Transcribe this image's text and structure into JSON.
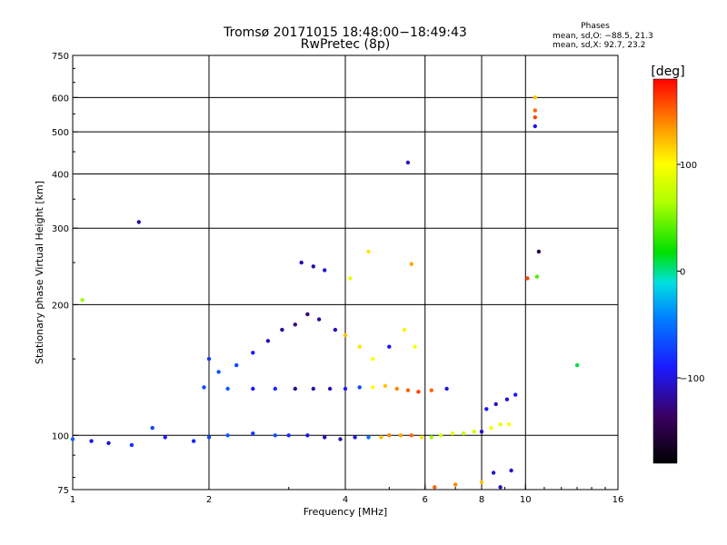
{
  "chart_data": {
    "type": "scatter",
    "title": "Tromsø 20171015 18:48:00−18:49:43",
    "subtitle": "RwPretec (8p)",
    "xlabel": "Frequency [MHz]",
    "ylabel": "Stationary phase Virtual Height [km]",
    "x_scale": "log",
    "y_scale": "log",
    "xlim": [
      1,
      16
    ],
    "ylim": [
      75,
      750
    ],
    "x_ticks": [
      {
        "value": 1,
        "label": "1"
      },
      {
        "value": 2,
        "label": "2"
      },
      {
        "value": 4,
        "label": "4"
      },
      {
        "value": 6,
        "label": "6"
      },
      {
        "value": 8,
        "label": "8"
      },
      {
        "value": 10,
        "label": "10"
      },
      {
        "value": 16,
        "label": "16"
      }
    ],
    "y_ticks": [
      {
        "value": 75,
        "label": "75"
      },
      {
        "value": 100,
        "label": "100"
      },
      {
        "value": 200,
        "label": "200"
      },
      {
        "value": 300,
        "label": "300"
      },
      {
        "value": 400,
        "label": "400"
      },
      {
        "value": 500,
        "label": "500"
      },
      {
        "value": 600,
        "label": "600"
      },
      {
        "value": 750,
        "label": "750"
      }
    ],
    "grid": true,
    "grid_x": [
      2,
      4,
      6,
      8,
      10
    ],
    "grid_y": [
      100,
      200,
      300,
      400,
      500,
      600
    ],
    "phase_box": {
      "title": "Phases",
      "line1": "mean, sd,O: −88.5, 21.3",
      "line2": "mean, sd,X:  92.7, 23.2"
    },
    "colorbar": {
      "label": "[deg]",
      "range": [
        -180,
        180
      ],
      "ticks": [
        {
          "value": 100,
          "label": "100"
        },
        {
          "value": 0,
          "label": "0"
        },
        {
          "value": -100,
          "label": "−100"
        }
      ]
    },
    "series": [
      {
        "segments": [
          [
            1.0,
            98,
            -60
          ],
          [
            1.1,
            97,
            -95
          ],
          [
            1.2,
            96,
            -100
          ],
          [
            1.35,
            95,
            -80
          ],
          [
            1.5,
            104,
            -70
          ],
          [
            1.6,
            99,
            -90
          ],
          [
            1.85,
            97,
            -85
          ],
          [
            2.0,
            99,
            -70
          ],
          [
            2.2,
            100,
            -60
          ],
          [
            2.5,
            101,
            -75
          ],
          [
            2.8,
            100,
            -65
          ],
          [
            3.0,
            100,
            -80
          ],
          [
            3.3,
            100,
            -100
          ],
          [
            3.6,
            99,
            -110
          ],
          [
            3.9,
            98,
            -115
          ],
          [
            4.2,
            99,
            -100
          ],
          [
            4.5,
            99,
            -50
          ],
          [
            4.8,
            99,
            120
          ],
          [
            5.0,
            100,
            140
          ],
          [
            5.3,
            100,
            130
          ],
          [
            5.6,
            100,
            150
          ],
          [
            5.9,
            99,
            110
          ],
          [
            6.2,
            99,
            60
          ],
          [
            6.5,
            100,
            80
          ],
          [
            6.9,
            101,
            90
          ],
          [
            7.3,
            101,
            70
          ],
          [
            7.7,
            102,
            80
          ],
          [
            8.0,
            102,
            -110
          ],
          [
            8.4,
            104,
            95
          ],
          [
            8.8,
            106,
            90
          ],
          [
            9.2,
            106,
            100
          ],
          [
            1.95,
            129,
            -70
          ],
          [
            2.2,
            128,
            -60
          ],
          [
            2.5,
            128,
            -90
          ],
          [
            2.8,
            128,
            -85
          ],
          [
            3.1,
            128,
            -120
          ],
          [
            3.4,
            128,
            -115
          ],
          [
            3.7,
            128,
            -110
          ],
          [
            4.0,
            128,
            -90
          ],
          [
            4.3,
            129,
            -70
          ],
          [
            4.6,
            129,
            100
          ],
          [
            4.9,
            130,
            120
          ],
          [
            5.2,
            128,
            140
          ],
          [
            5.5,
            127,
            150
          ],
          [
            5.8,
            126,
            160
          ],
          [
            6.2,
            127,
            150
          ],
          [
            6.7,
            128,
            -100
          ],
          [
            8.2,
            115,
            -90
          ],
          [
            8.6,
            118,
            -110
          ],
          [
            9.1,
            121,
            -100
          ],
          [
            9.5,
            124,
            -90
          ],
          [
            2.0,
            150,
            -75
          ],
          [
            2.1,
            140,
            -65
          ],
          [
            2.3,
            145,
            -70
          ],
          [
            2.5,
            155,
            -90
          ],
          [
            2.7,
            165,
            -110
          ],
          [
            2.9,
            175,
            -120
          ],
          [
            3.1,
            180,
            -125
          ],
          [
            3.3,
            190,
            -130
          ],
          [
            3.5,
            185,
            -120
          ],
          [
            3.8,
            175,
            -110
          ],
          [
            4.0,
            170,
            120
          ],
          [
            4.3,
            160,
            110
          ],
          [
            4.6,
            150,
            100
          ],
          [
            5.0,
            160,
            -95
          ],
          [
            5.4,
            175,
            105
          ],
          [
            5.7,
            160,
            100
          ],
          [
            3.2,
            250,
            -110
          ],
          [
            3.4,
            245,
            -115
          ],
          [
            3.6,
            240,
            -100
          ],
          [
            4.1,
            230,
            90
          ],
          [
            4.5,
            265,
            110
          ],
          [
            5.6,
            248,
            130
          ],
          [
            5.5,
            425,
            -110
          ],
          [
            1.4,
            310,
            -120
          ],
          [
            1.05,
            205,
            60
          ],
          [
            10.5,
            600,
            120
          ],
          [
            10.5,
            560,
            150
          ],
          [
            10.5,
            540,
            160
          ],
          [
            10.5,
            515,
            -100
          ],
          [
            10.1,
            230,
            160
          ],
          [
            10.6,
            232,
            40
          ],
          [
            10.7,
            265,
            -150
          ],
          [
            13.0,
            145,
            10
          ],
          [
            6.3,
            76,
            150
          ],
          [
            7.0,
            77,
            140
          ],
          [
            8.0,
            78,
            120
          ],
          [
            8.5,
            82,
            -100
          ],
          [
            8.8,
            76,
            -110
          ],
          [
            9.3,
            83,
            -100
          ]
        ]
      }
    ]
  }
}
